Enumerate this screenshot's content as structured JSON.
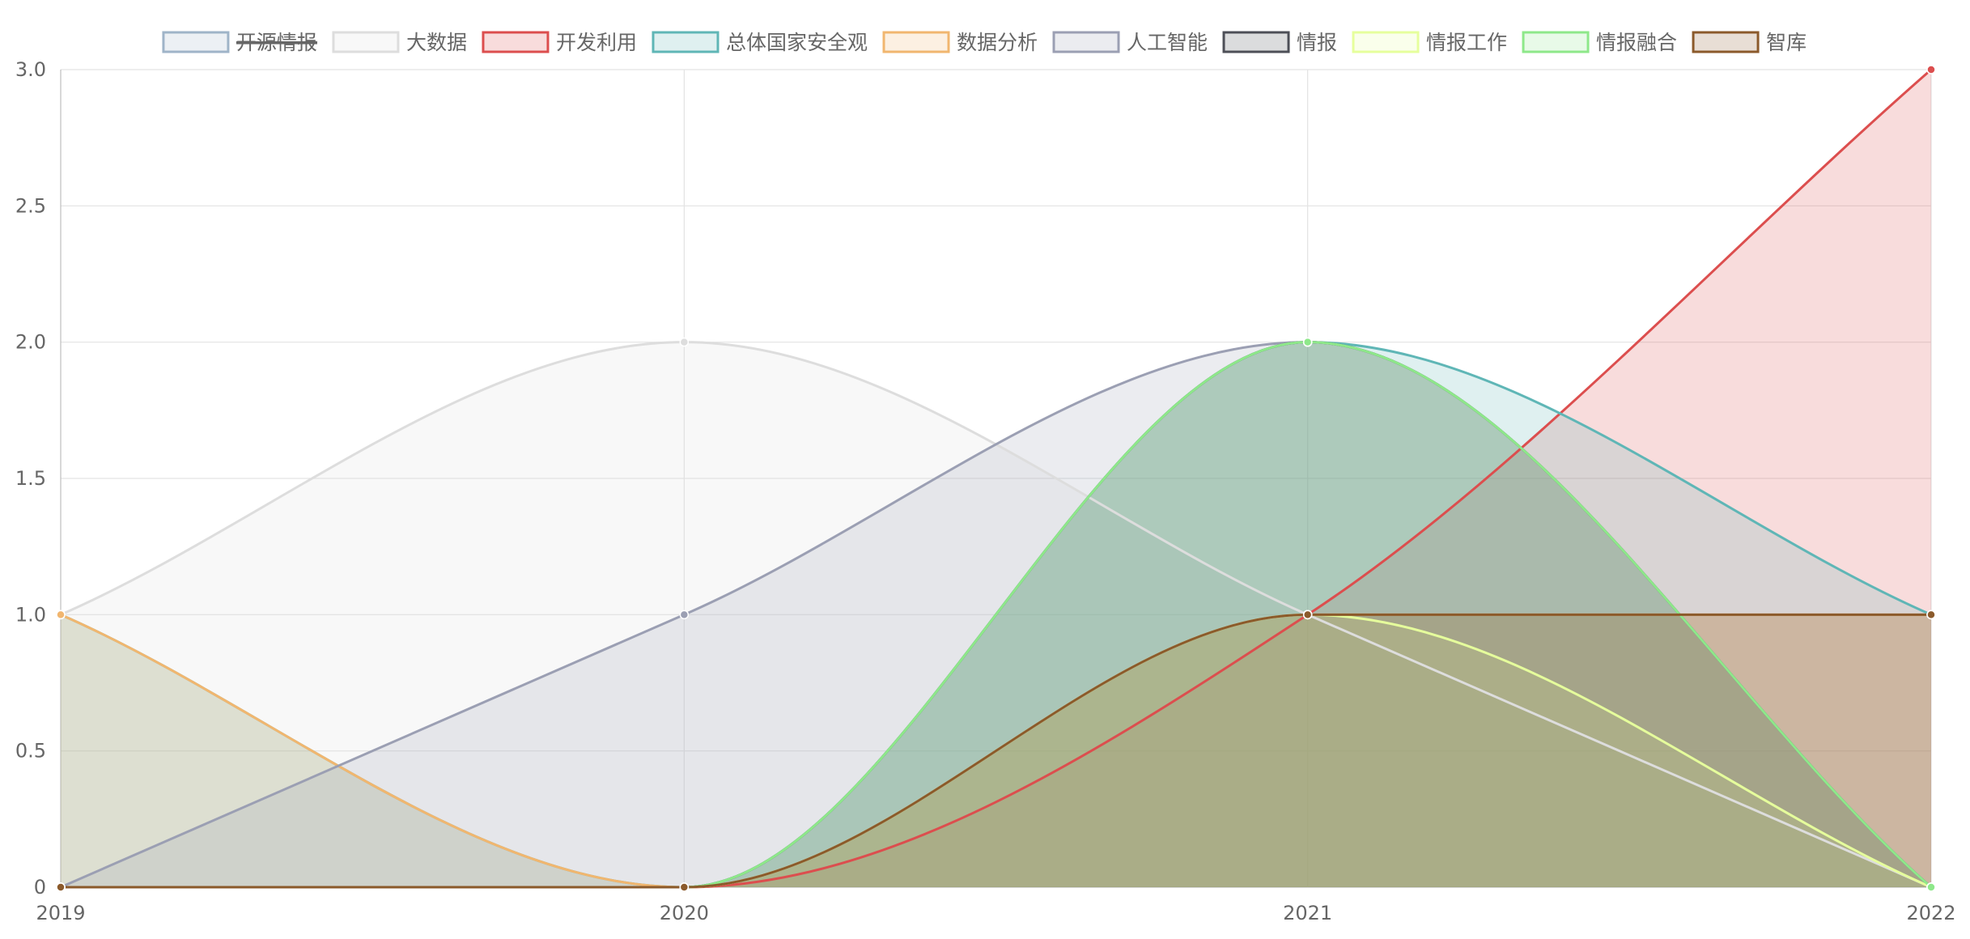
{
  "chart_data": {
    "type": "area",
    "title": "",
    "xlabel": "",
    "ylabel": "",
    "categories": [
      "2019",
      "2020",
      "2021",
      "2022"
    ],
    "ylim": [
      0,
      3
    ],
    "yticks": [
      "0",
      "0.5",
      "1.0",
      "1.5",
      "2.0",
      "2.5",
      "3.0"
    ],
    "grid": true,
    "legend_position": "top",
    "series": [
      {
        "name": "开源情报",
        "values": [
          1,
          0,
          2,
          1
        ],
        "color": "#9fb4c8",
        "hidden": true
      },
      {
        "name": "大数据",
        "values": [
          1,
          2,
          1,
          0
        ],
        "color": "#dddddd",
        "hidden": false
      },
      {
        "name": "开发利用",
        "values": [
          0,
          0,
          1,
          3
        ],
        "color": "#dc4e4e",
        "hidden": false
      },
      {
        "name": "总体国家安全观",
        "values": [
          1,
          0,
          2,
          1
        ],
        "color": "#5fb6b6",
        "hidden": false
      },
      {
        "name": "数据分析",
        "values": [
          1,
          0,
          1,
          1
        ],
        "color": "#f1b66f",
        "hidden": false
      },
      {
        "name": "人工智能",
        "values": [
          0,
          1,
          2,
          0
        ],
        "color": "#9b9fb3",
        "hidden": false
      },
      {
        "name": "情报",
        "values": [
          0,
          0,
          2,
          0
        ],
        "color": "#4d4f57",
        "hidden": false
      },
      {
        "name": "情报工作",
        "values": [
          0,
          0,
          1,
          0
        ],
        "color": "#e6ff9c",
        "hidden": false
      },
      {
        "name": "情报融合",
        "values": [
          0,
          0,
          2,
          0
        ],
        "color": "#8ee88a",
        "hidden": false
      },
      {
        "name": "智库",
        "values": [
          0,
          0,
          1,
          1
        ],
        "color": "#8b5a2b",
        "hidden": false
      }
    ]
  }
}
